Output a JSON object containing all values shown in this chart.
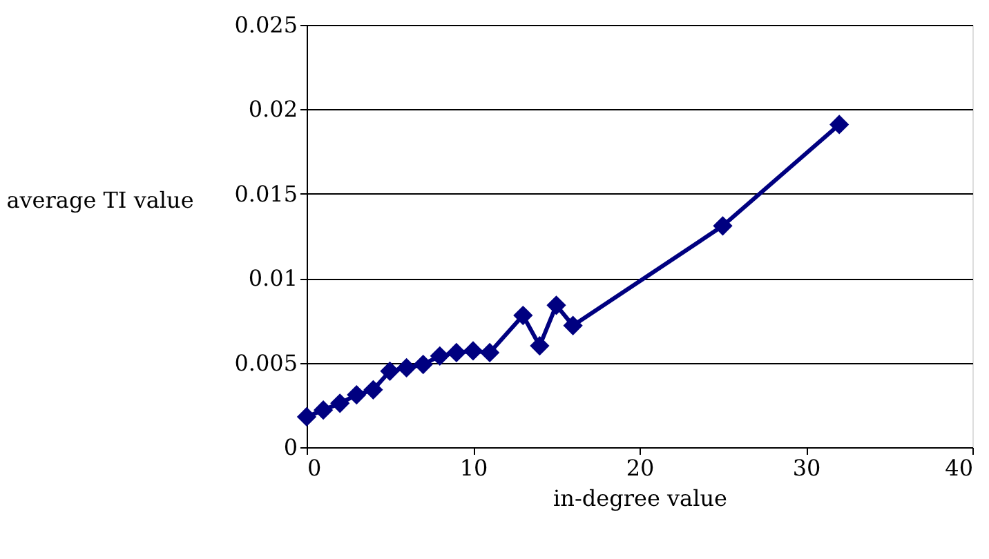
{
  "chart_data": {
    "type": "line",
    "xlabel": "in-degree value",
    "ylabel": "average TI value",
    "x": [
      0,
      1,
      2,
      3,
      4,
      5,
      6,
      7,
      8,
      9,
      10,
      11,
      13,
      14,
      15,
      16,
      25,
      32
    ],
    "series": [
      {
        "color": "#000080",
        "values": [
          0.0018,
          0.0022,
          0.0026,
          0.0031,
          0.0034,
          0.0045,
          0.0047,
          0.0049,
          0.0054,
          0.0056,
          0.0057,
          0.0056,
          0.0078,
          0.006,
          0.0084,
          0.0072,
          0.0131,
          0.0191
        ]
      }
    ],
    "xlim": [
      0,
      40
    ],
    "xticks": [
      0,
      10,
      20,
      30,
      40
    ],
    "ylim": [
      0,
      0.025
    ],
    "yticks": [
      0,
      0.005,
      0.01,
      0.015,
      0.02,
      0.025
    ],
    "grid": "y",
    "marker": "diamond",
    "line_style": "solid",
    "legend": false
  }
}
